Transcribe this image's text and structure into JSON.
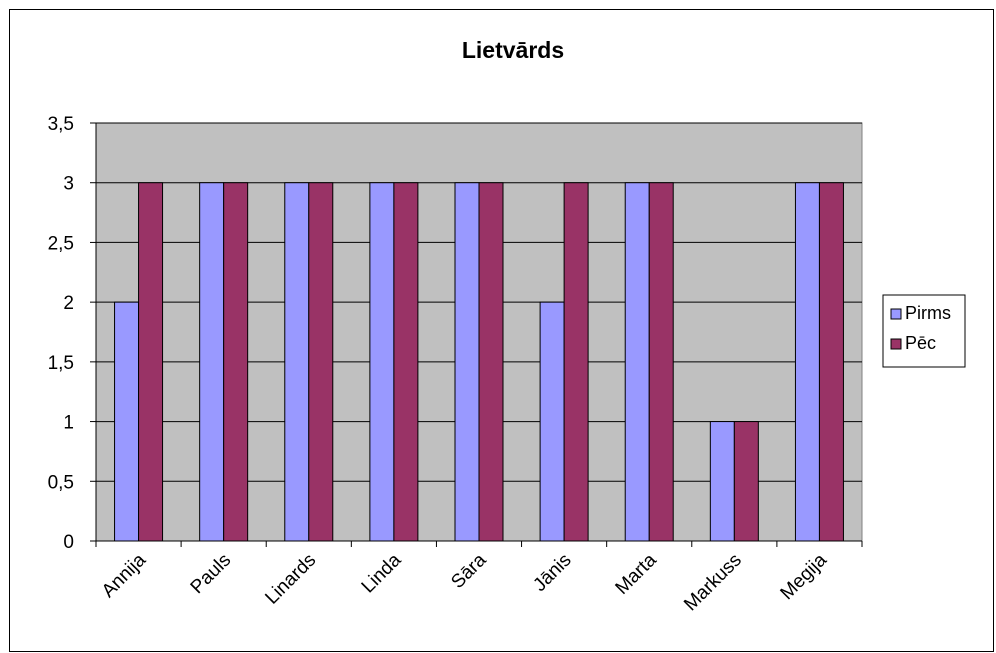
{
  "chart_data": {
    "type": "bar",
    "title": "Lietvārds",
    "categories": [
      "Annija",
      "Pauls",
      "Linards",
      "Linda",
      "Sāra",
      "Jānis",
      "Marta",
      "Markuss",
      "Megija"
    ],
    "series": [
      {
        "name": "Pirms",
        "color": "#9999ff",
        "values": [
          2,
          3,
          3,
          3,
          3,
          2,
          3,
          1,
          3
        ]
      },
      {
        "name": "Pēc",
        "color": "#993366",
        "values": [
          3,
          3,
          3,
          3,
          3,
          3,
          3,
          1,
          3
        ]
      }
    ],
    "ylim": [
      0,
      3.5
    ],
    "yticks": [
      "0",
      "0,5",
      "1",
      "1,5",
      "2",
      "2,5",
      "3",
      "3,5"
    ],
    "ytick_values": [
      0,
      0.5,
      1,
      1.5,
      2,
      2.5,
      3,
      3.5
    ],
    "grid": true,
    "plot_background": "#c0c0c0",
    "legend_position": "right"
  }
}
